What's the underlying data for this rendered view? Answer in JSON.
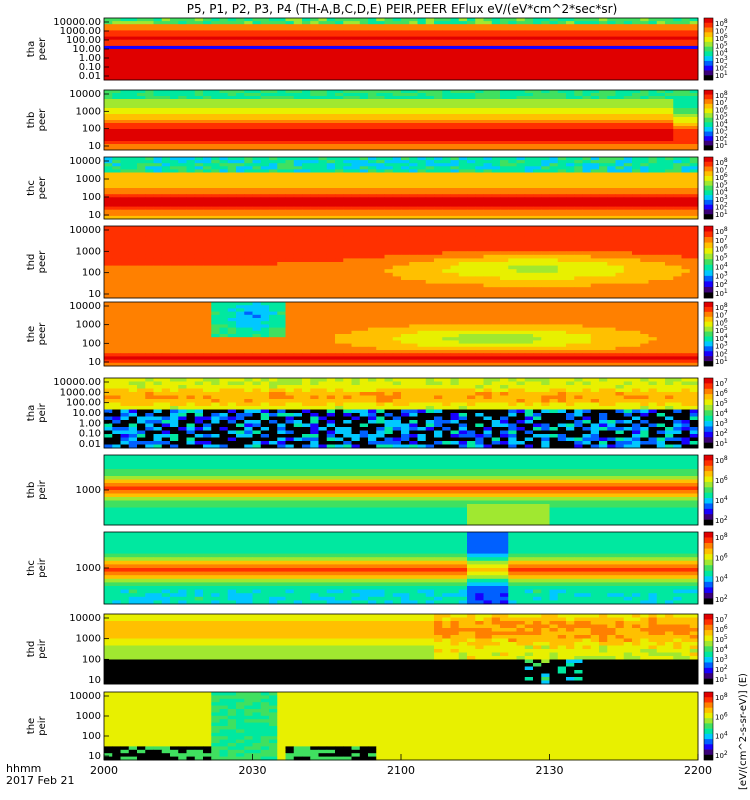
{
  "title": "P5, P1, P2, P3, P4 (TH-A,B,C,D,E) PEIR,PEER EFlux eV/(eV*cm^2*sec*sr)",
  "footer": {
    "time_label": "hhmm",
    "date_label": "2017 Feb 21"
  },
  "colorbar_label": "[eV/(cm^2-s-sr-eV)] (E)",
  "chart_data": [
    {
      "type": "heatmap",
      "ylabel": "tha peer",
      "y_log": true,
      "yticks": [
        "10000.00",
        "1000.00",
        "100.00",
        "10.00",
        "1.00",
        "0.10",
        "0.01"
      ],
      "cbar_ticks": [
        "10^8",
        "10^7",
        "10^6",
        "10^5",
        "10^4",
        "10^3",
        "10^2",
        "10^1"
      ],
      "pattern": "tha_peer"
    },
    {
      "type": "heatmap",
      "ylabel": "thb peer",
      "y_log": true,
      "yticks": [
        "10000",
        "1000",
        "100",
        "10"
      ],
      "cbar_ticks": [
        "10^8",
        "10^7",
        "10^6",
        "10^5",
        "10^4",
        "10^3",
        "10^2",
        "10^1"
      ],
      "pattern": "thb_peer"
    },
    {
      "type": "heatmap",
      "ylabel": "thc peer",
      "y_log": true,
      "yticks": [
        "10000",
        "1000",
        "100",
        "10"
      ],
      "cbar_ticks": [
        "10^8",
        "10^7",
        "10^6",
        "10^5",
        "10^4",
        "10^3",
        "10^2",
        "10^1"
      ],
      "pattern": "thc_peer"
    },
    {
      "type": "heatmap",
      "ylabel": "thd peer",
      "y_log": true,
      "yticks": [
        "10000",
        "1000",
        "100",
        "10"
      ],
      "cbar_ticks": [
        "10^8",
        "10^7",
        "10^6",
        "10^5",
        "10^4",
        "10^3",
        "10^2",
        "10^1"
      ],
      "pattern": "thd_peer"
    },
    {
      "type": "heatmap",
      "ylabel": "the peer",
      "y_log": true,
      "yticks": [
        "10000",
        "1000",
        "100",
        "10"
      ],
      "cbar_ticks": [
        "10^8",
        "10^7",
        "10^6",
        "10^5",
        "10^4",
        "10^3",
        "10^2",
        "10^1"
      ],
      "pattern": "the_peer"
    },
    {
      "type": "heatmap",
      "ylabel": "tha peir",
      "y_log": true,
      "yticks": [
        "10000.00",
        "1000.00",
        "100.00",
        "10.00",
        "1.00",
        "0.10",
        "0.01"
      ],
      "cbar_ticks": [
        "10^7",
        "10^6",
        "10^5",
        "10^4",
        "10^3",
        "10^2",
        "10^1"
      ],
      "pattern": "tha_peir"
    },
    {
      "type": "heatmap",
      "ylabel": "thb peir",
      "y_log": true,
      "yticks": [
        "1000"
      ],
      "cbar_ticks": [
        "10^8",
        "10^6",
        "10^4",
        "10^2"
      ],
      "pattern": "thb_peir"
    },
    {
      "type": "heatmap",
      "ylabel": "thc peir",
      "y_log": true,
      "yticks": [
        "1000"
      ],
      "cbar_ticks": [
        "10^8",
        "10^6",
        "10^4",
        "10^2"
      ],
      "pattern": "thc_peir"
    },
    {
      "type": "heatmap",
      "ylabel": "thd peir",
      "y_log": true,
      "yticks": [
        "10000",
        "1000",
        "100",
        "10"
      ],
      "cbar_ticks": [
        "10^7",
        "10^6",
        "10^5",
        "10^4",
        "10^3",
        "10^2",
        "10^1"
      ],
      "pattern": "thd_peir"
    },
    {
      "type": "heatmap",
      "ylabel": "the peir",
      "y_log": true,
      "yticks": [
        "10000",
        "1000",
        "100",
        "10"
      ],
      "cbar_ticks": [
        "10^8",
        "10^6",
        "10^4",
        "10^2"
      ],
      "pattern": "the_peir"
    }
  ],
  "x_axis": {
    "ticks": [
      "2000",
      "2030",
      "2100",
      "2130",
      "2200"
    ],
    "range": [
      "20:00",
      "22:00"
    ]
  },
  "colormap": [
    "#000000",
    "#3a0078",
    "#1800ff",
    "#0060ff",
    "#00c8ff",
    "#00e8a0",
    "#40e060",
    "#a0e830",
    "#e8f000",
    "#ffc000",
    "#ff8000",
    "#ff3000",
    "#e00000"
  ]
}
